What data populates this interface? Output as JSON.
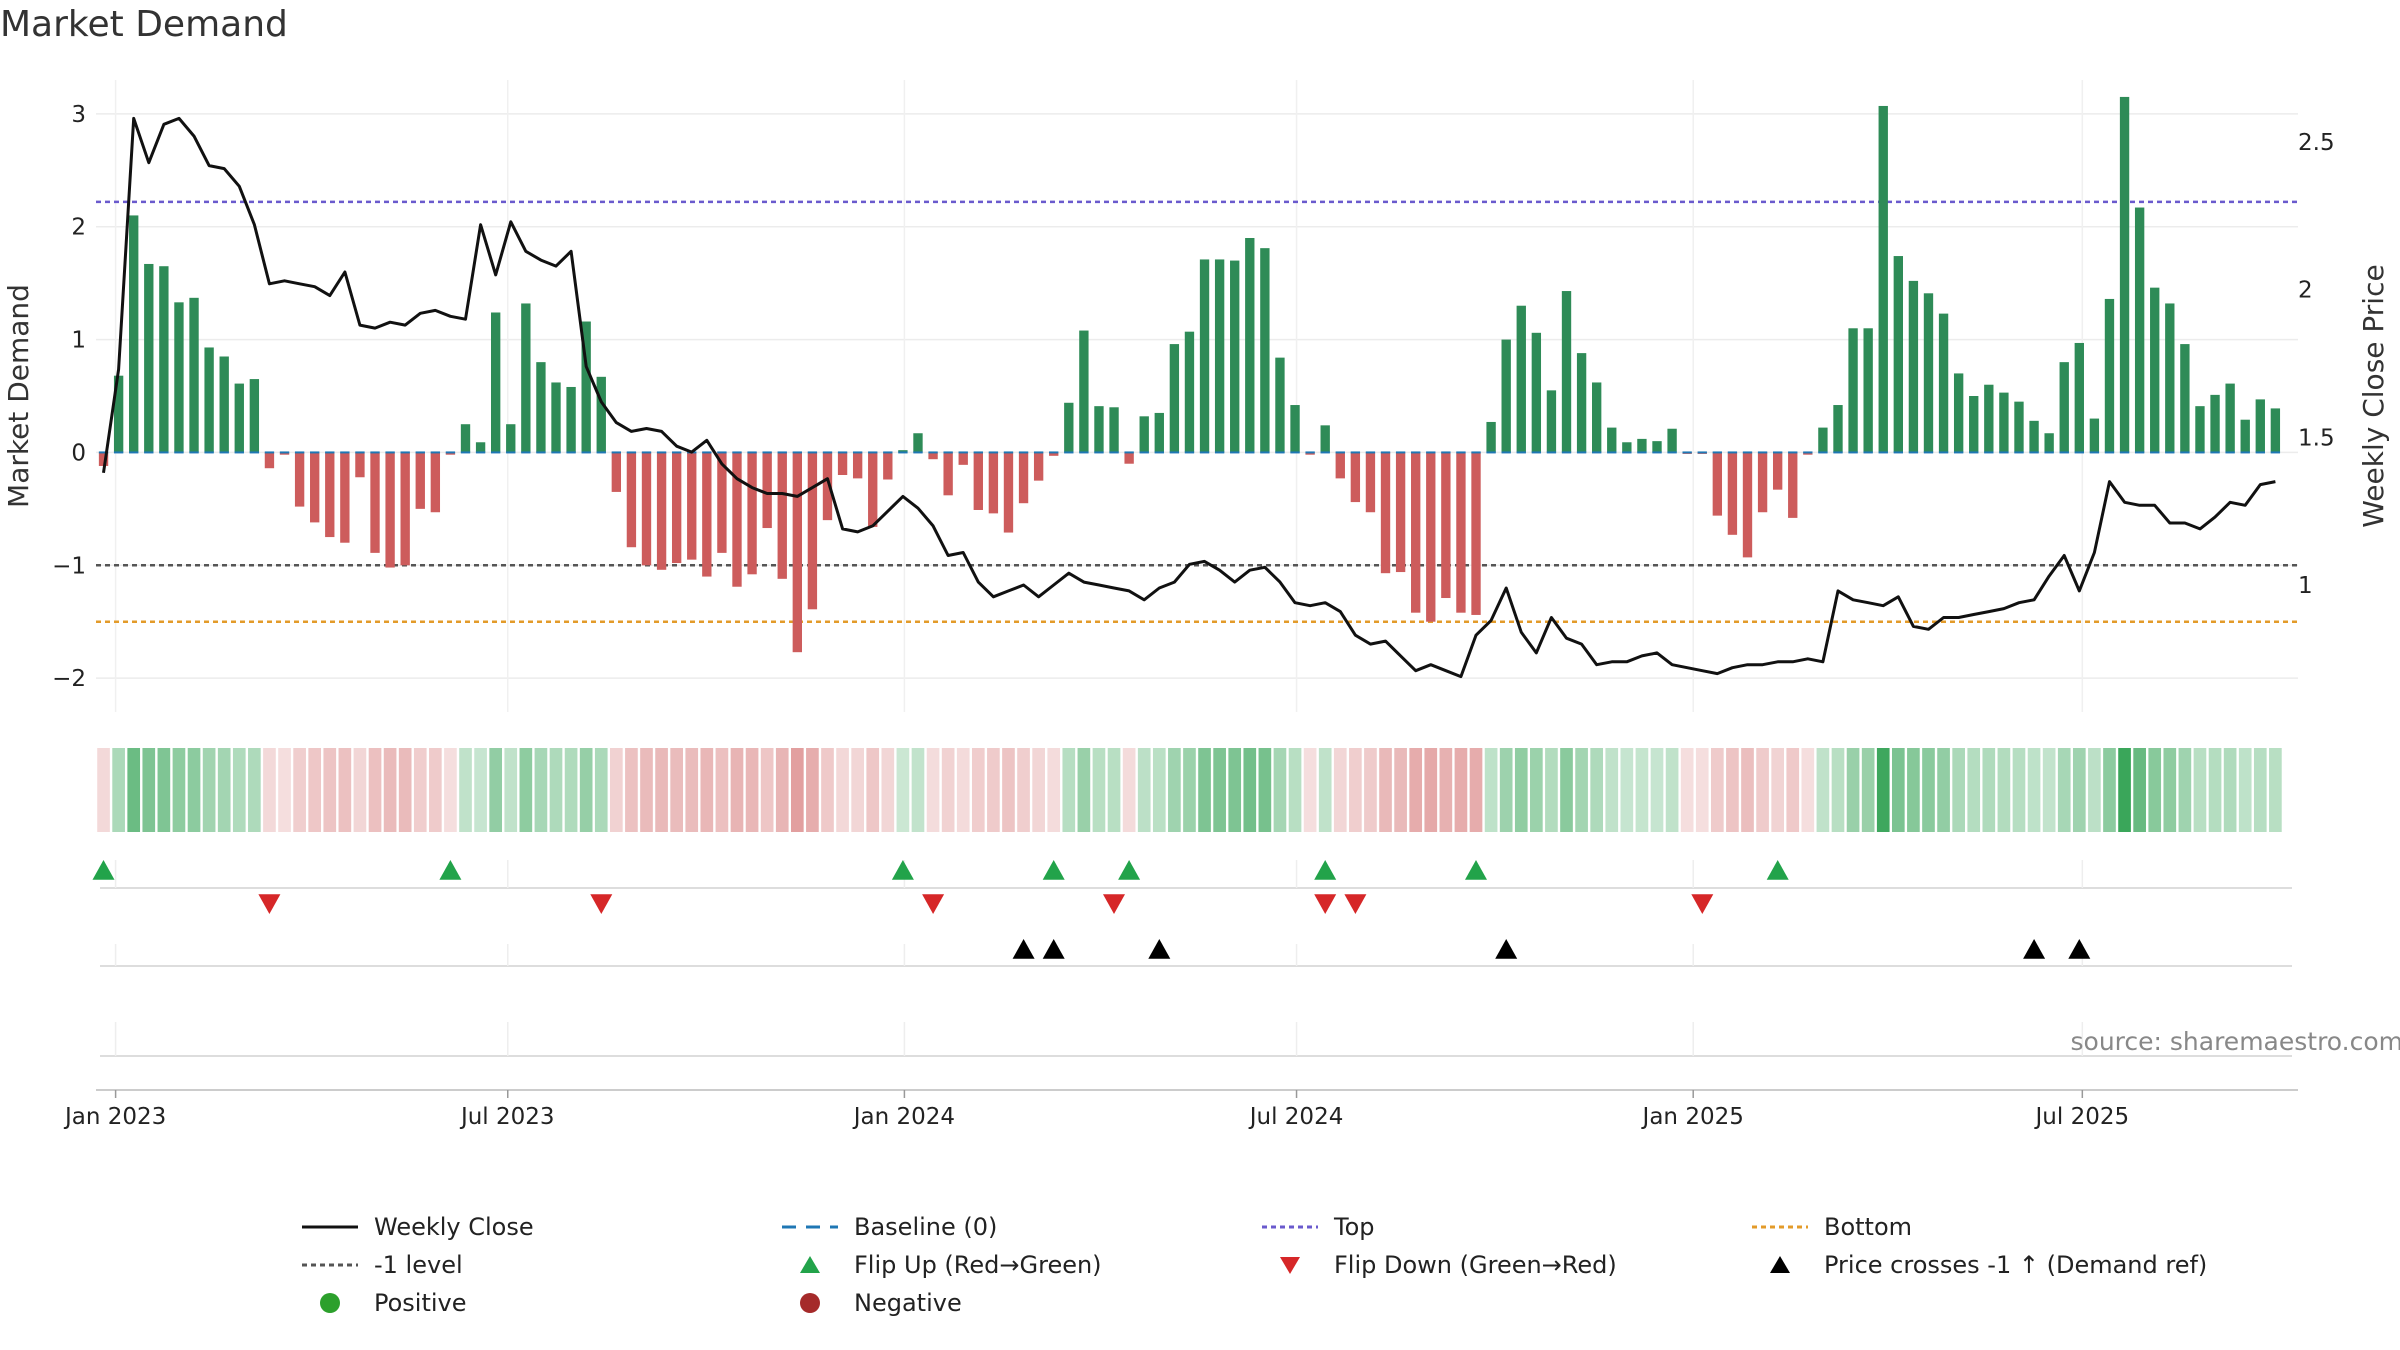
{
  "page": {
    "title": "Market Demand",
    "source": "source: sharemaestro.com"
  },
  "colors": {
    "positive": "#2e8b57",
    "negative": "#cd5c5c",
    "price": "#111111",
    "top": "#6a5acd",
    "minus_one": "#555555",
    "bottom": "#e39b2a",
    "baseline": "#1f77b4",
    "flip_up": "#22a34a",
    "flip_down": "#d62728",
    "cross": "#000000",
    "positive_dot": "#2ca02c",
    "negative_dot": "#a52a2a"
  },
  "chart_data": {
    "type": "bar+line",
    "title": "Market Demand",
    "ylabel": "Market Demand",
    "y2label": "Weekly Close Price",
    "ylim": [
      -2.3,
      3.3
    ],
    "y2lim": [
      0.57,
      2.71
    ],
    "yticks": [
      3,
      2,
      1,
      0,
      -1,
      -2
    ],
    "ytick_labels": [
      "3",
      "2",
      "1",
      "0",
      "−1",
      "−2"
    ],
    "y2ticks": [
      2.5,
      2,
      1.5,
      1
    ],
    "y2tick_labels": [
      "2.5",
      "2",
      "1.5",
      "1"
    ],
    "x_start": "2022-12-23",
    "weeks": 146,
    "xticks": [
      {
        "label": "Jan 2023",
        "week": 1.3
      },
      {
        "label": "Jul 2023",
        "week": 27.3
      },
      {
        "label": "Jan 2024",
        "week": 53.6
      },
      {
        "label": "Jul 2024",
        "week": 79.6
      },
      {
        "label": "Jan 2025",
        "week": 105.9
      },
      {
        "label": "Jul 2025",
        "week": 131.7
      }
    ],
    "reference_lines": {
      "top": 2.22,
      "minus_one": -1.0,
      "bottom": -1.5,
      "baseline": 0
    },
    "demand": [
      -0.12,
      0.68,
      2.1,
      1.67,
      1.65,
      1.33,
      1.37,
      0.93,
      0.85,
      0.61,
      0.65,
      -0.14,
      -0.02,
      -0.48,
      -0.62,
      -0.75,
      -0.8,
      -0.22,
      -0.89,
      -1.02,
      -1.0,
      -0.5,
      -0.53,
      -0.02,
      0.25,
      0.09,
      1.24,
      0.25,
      1.32,
      0.8,
      0.62,
      0.58,
      1.16,
      0.67,
      -0.35,
      -0.84,
      -1.0,
      -1.04,
      -0.98,
      -0.95,
      -1.1,
      -0.89,
      -1.19,
      -1.08,
      -0.67,
      -1.12,
      -1.77,
      -1.39,
      -0.6,
      -0.2,
      -0.23,
      -0.66,
      -0.24,
      0.02,
      0.17,
      -0.06,
      -0.38,
      -0.11,
      -0.51,
      -0.54,
      -0.71,
      -0.45,
      -0.25,
      -0.03,
      0.44,
      1.08,
      0.41,
      0.4,
      -0.1,
      0.32,
      0.35,
      0.96,
      1.07,
      1.71,
      1.71,
      1.7,
      1.9,
      1.81,
      0.84,
      0.42,
      -0.02,
      0.24,
      -0.23,
      -0.44,
      -0.53,
      -1.07,
      -1.06,
      -1.42,
      -1.5,
      -1.29,
      -1.42,
      -1.44,
      0.27,
      1.0,
      1.3,
      1.06,
      0.55,
      1.43,
      0.88,
      0.62,
      0.22,
      0.09,
      0.12,
      0.1,
      0.21,
      -0.01,
      -0.01,
      -0.56,
      -0.73,
      -0.93,
      -0.53,
      -0.33,
      -0.58,
      -0.02,
      0.22,
      0.42,
      1.1,
      1.1,
      3.07,
      1.74,
      1.52,
      1.41,
      1.23,
      0.7,
      0.5,
      0.6,
      0.53,
      0.45,
      0.28,
      0.17,
      0.8,
      0.97,
      0.3,
      1.36,
      3.15,
      2.17,
      1.46,
      1.32,
      0.96,
      0.41,
      0.51,
      0.61,
      0.29,
      0.47,
      0.39
    ],
    "close": [
      1.38,
      1.73,
      2.58,
      2.43,
      2.56,
      2.58,
      2.52,
      2.42,
      2.41,
      2.35,
      2.22,
      2.02,
      2.03,
      2.02,
      2.01,
      1.98,
      2.06,
      1.88,
      1.87,
      1.89,
      1.88,
      1.92,
      1.93,
      1.91,
      1.9,
      2.22,
      2.05,
      2.23,
      2.13,
      2.1,
      2.08,
      2.13,
      1.74,
      1.62,
      1.55,
      1.52,
      1.53,
      1.52,
      1.47,
      1.45,
      1.49,
      1.41,
      1.36,
      1.33,
      1.31,
      1.31,
      1.3,
      1.33,
      1.36,
      1.19,
      1.18,
      1.2,
      1.25,
      1.3,
      1.26,
      1.2,
      1.1,
      1.11,
      1.01,
      0.96,
      0.98,
      1.0,
      0.96,
      1.0,
      1.04,
      1.01,
      1.0,
      0.99,
      0.98,
      0.95,
      0.99,
      1.01,
      1.07,
      1.08,
      1.05,
      1.01,
      1.05,
      1.06,
      1.01,
      0.94,
      0.93,
      0.94,
      0.91,
      0.83,
      0.8,
      0.81,
      0.76,
      0.71,
      0.73,
      0.71,
      0.69,
      0.83,
      0.88,
      0.99,
      0.84,
      0.77,
      0.89,
      0.82,
      0.8,
      0.73,
      0.74,
      0.74,
      0.76,
      0.77,
      0.73,
      0.72,
      0.71,
      0.7,
      0.72,
      0.73,
      0.73,
      0.74,
      0.74,
      0.75,
      0.74,
      0.98,
      0.95,
      0.94,
      0.93,
      0.96,
      0.86,
      0.85,
      0.89,
      0.89,
      0.9,
      0.91,
      0.92,
      0.94,
      0.95,
      1.03,
      1.1,
      0.98,
      1.11,
      1.35,
      1.28,
      1.27,
      1.27,
      1.21,
      1.21,
      1.19,
      1.23,
      1.28,
      1.27,
      1.34,
      1.35
    ],
    "flip_up_weeks": [
      0,
      23,
      53,
      63,
      68,
      81,
      91,
      111
    ],
    "flip_down_weeks": [
      11,
      33,
      55,
      67,
      81,
      83,
      106
    ],
    "price_cross_weeks": [
      61,
      63,
      70,
      93,
      128,
      131
    ],
    "legend": [
      {
        "label": "Weekly Close",
        "symbol": "line",
        "color_key": "price"
      },
      {
        "label": "Baseline (0)",
        "symbol": "dash",
        "color_key": "baseline"
      },
      {
        "label": "Top",
        "symbol": "dot",
        "color_key": "top"
      },
      {
        "label": "Bottom",
        "symbol": "dot",
        "color_key": "bottom"
      },
      {
        "label": "-1 level",
        "symbol": "dot",
        "color_key": "minus_one"
      },
      {
        "label": "Flip Up (Red→Green)",
        "symbol": "tri-up",
        "color_key": "flip_up"
      },
      {
        "label": "Flip Down (Green→Red)",
        "symbol": "tri-down",
        "color_key": "flip_down"
      },
      {
        "label": "Price crosses -1 ↑ (Demand ref)",
        "symbol": "tri-up",
        "color_key": "cross"
      },
      {
        "label": "Positive",
        "symbol": "circle",
        "color_key": "positive_dot"
      },
      {
        "label": "Negative",
        "symbol": "circle",
        "color_key": "negative_dot"
      }
    ]
  }
}
